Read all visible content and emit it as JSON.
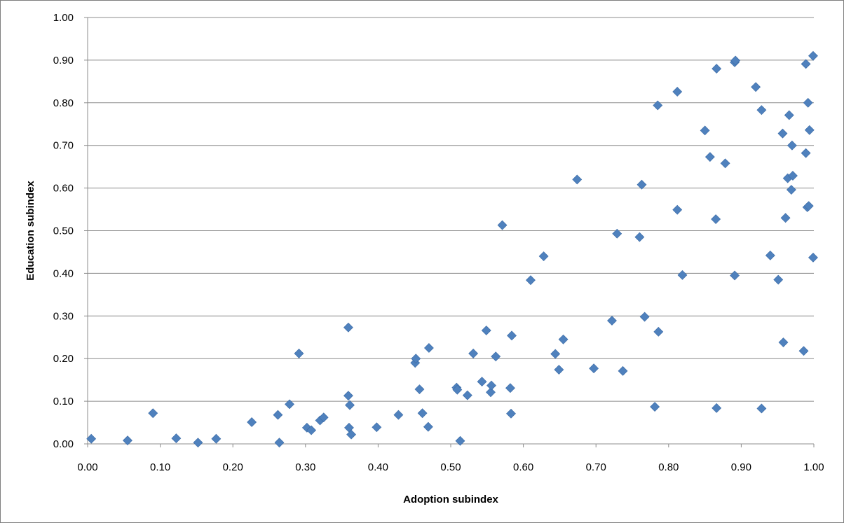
{
  "chart_data": {
    "type": "scatter",
    "title": "",
    "xlabel": "Adoption subindex",
    "ylabel": "Education subindex",
    "xlim": [
      0,
      1
    ],
    "ylim": [
      0,
      1
    ],
    "x_ticks": [
      "0.00",
      "0.10",
      "0.20",
      "0.30",
      "0.40",
      "0.50",
      "0.60",
      "0.70",
      "0.80",
      "0.90",
      "1.00"
    ],
    "y_ticks": [
      "0.00",
      "0.10",
      "0.20",
      "0.30",
      "0.40",
      "0.50",
      "0.60",
      "0.70",
      "0.80",
      "0.90",
      "1.00"
    ],
    "grid": "horizontal",
    "marker": "diamond",
    "marker_color": "#4f81bd",
    "legend": "none",
    "series": [
      {
        "points": [
          [
            0.005,
            0.012
          ],
          [
            0.055,
            0.008
          ],
          [
            0.09,
            0.072
          ],
          [
            0.122,
            0.013
          ],
          [
            0.152,
            0.003
          ],
          [
            0.177,
            0.012
          ],
          [
            0.226,
            0.051
          ],
          [
            0.262,
            0.068
          ],
          [
            0.264,
            0.003
          ],
          [
            0.278,
            0.093
          ],
          [
            0.291,
            0.212
          ],
          [
            0.302,
            0.038
          ],
          [
            0.308,
            0.032
          ],
          [
            0.32,
            0.055
          ],
          [
            0.325,
            0.062
          ],
          [
            0.359,
            0.273
          ],
          [
            0.359,
            0.113
          ],
          [
            0.36,
            0.038
          ],
          [
            0.361,
            0.091
          ],
          [
            0.363,
            0.022
          ],
          [
            0.398,
            0.039
          ],
          [
            0.428,
            0.068
          ],
          [
            0.451,
            0.19
          ],
          [
            0.452,
            0.2
          ],
          [
            0.457,
            0.128
          ],
          [
            0.461,
            0.072
          ],
          [
            0.469,
            0.04
          ],
          [
            0.47,
            0.225
          ],
          [
            0.508,
            0.132
          ],
          [
            0.509,
            0.127
          ],
          [
            0.513,
            0.007
          ],
          [
            0.523,
            0.114
          ],
          [
            0.531,
            0.212
          ],
          [
            0.543,
            0.146
          ],
          [
            0.549,
            0.266
          ],
          [
            0.555,
            0.121
          ],
          [
            0.556,
            0.137
          ],
          [
            0.562,
            0.205
          ],
          [
            0.571,
            0.513
          ],
          [
            0.582,
            0.131
          ],
          [
            0.583,
            0.071
          ],
          [
            0.584,
            0.254
          ],
          [
            0.61,
            0.384
          ],
          [
            0.628,
            0.44
          ],
          [
            0.644,
            0.211
          ],
          [
            0.649,
            0.174
          ],
          [
            0.655,
            0.245
          ],
          [
            0.674,
            0.62
          ],
          [
            0.697,
            0.177
          ],
          [
            0.722,
            0.289
          ],
          [
            0.729,
            0.493
          ],
          [
            0.737,
            0.171
          ],
          [
            0.76,
            0.485
          ],
          [
            0.763,
            0.608
          ],
          [
            0.767,
            0.298
          ],
          [
            0.781,
            0.087
          ],
          [
            0.785,
            0.794
          ],
          [
            0.786,
            0.263
          ],
          [
            0.812,
            0.549
          ],
          [
            0.812,
            0.826
          ],
          [
            0.819,
            0.396
          ],
          [
            0.85,
            0.735
          ],
          [
            0.857,
            0.673
          ],
          [
            0.865,
            0.527
          ],
          [
            0.866,
            0.88
          ],
          [
            0.866,
            0.084
          ],
          [
            0.878,
            0.658
          ],
          [
            0.891,
            0.395
          ],
          [
            0.891,
            0.895
          ],
          [
            0.892,
            0.899
          ],
          [
            0.92,
            0.837
          ],
          [
            0.928,
            0.783
          ],
          [
            0.928,
            0.083
          ],
          [
            0.94,
            0.442
          ],
          [
            0.951,
            0.385
          ],
          [
            0.957,
            0.728
          ],
          [
            0.958,
            0.238
          ],
          [
            0.961,
            0.53
          ],
          [
            0.964,
            0.623
          ],
          [
            0.966,
            0.771
          ],
          [
            0.969,
            0.596
          ],
          [
            0.97,
            0.7
          ],
          [
            0.971,
            0.629
          ],
          [
            0.986,
            0.218
          ],
          [
            0.989,
            0.891
          ],
          [
            0.989,
            0.682
          ],
          [
            0.991,
            0.555
          ],
          [
            0.992,
            0.8
          ],
          [
            0.993,
            0.558
          ],
          [
            0.994,
            0.736
          ],
          [
            0.999,
            0.91
          ],
          [
            0.999,
            0.437
          ]
        ]
      }
    ]
  }
}
